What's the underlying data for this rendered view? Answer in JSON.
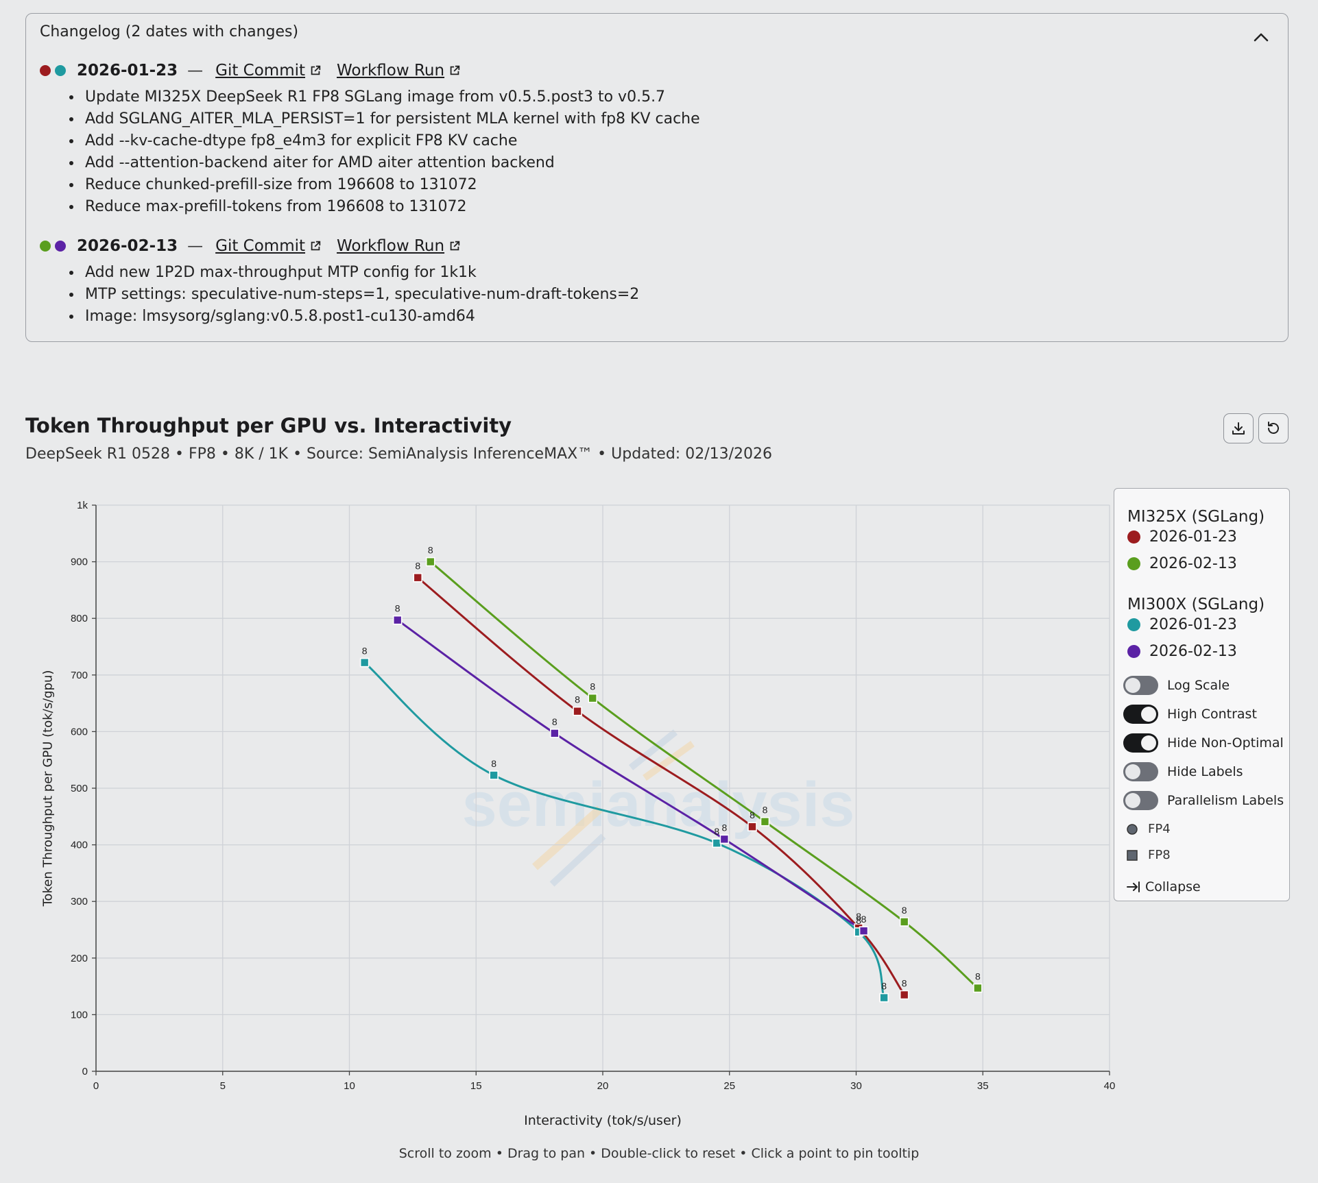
{
  "changelog": {
    "title": "Changelog (2 dates with changes)",
    "entries": [
      {
        "dot_colors": [
          "#9c1c1f",
          "#1f9aa0"
        ],
        "date": "2026-01-23",
        "dash": "—",
        "commit_label": "Git Commit",
        "workflow_label": "Workflow Run",
        "items": [
          "Update MI325X DeepSeek R1 FP8 SGLang image from v0.5.5.post3 to v0.5.7",
          "Add SGLANG_AITER_MLA_PERSIST=1 for persistent MLA kernel with fp8 KV cache",
          "Add --kv-cache-dtype fp8_e4m3 for explicit FP8 KV cache",
          "Add --attention-backend aiter for AMD aiter attention backend",
          "Reduce chunked-prefill-size from 196608 to 131072",
          "Reduce max-prefill-tokens from 196608 to 131072"
        ]
      },
      {
        "dot_colors": [
          "#5a9e1e",
          "#5b22a5"
        ],
        "date": "2026-02-13",
        "dash": "—",
        "commit_label": "Git Commit",
        "workflow_label": "Workflow Run",
        "items": [
          "Add new 1P2D max-throughput MTP config for 1k1k",
          "MTP settings: speculative-num-steps=1, speculative-num-draft-tokens=2",
          "Image: lmsysorg/sglang:v0.5.8.post1-cu130-amd64"
        ]
      }
    ]
  },
  "header": {
    "title": "Token Throughput per GPU vs. Interactivity",
    "subtitle": "DeepSeek R1 0528 • FP8 • 8K / 1K • Source: SemiAnalysis InferenceMAX™ • Updated: 02/13/2026"
  },
  "hint": "Scroll to zoom • Drag to pan • Double-click to reset • Click a point to pin tooltip",
  "watermark": "semianalysis",
  "legend": {
    "groups": [
      {
        "name": "MI325X (SGLang)",
        "items": [
          {
            "label": "2026-01-23",
            "color": "#9c1c1f"
          },
          {
            "label": "2026-02-13",
            "color": "#5a9e1e"
          }
        ]
      },
      {
        "name": "MI300X (SGLang)",
        "items": [
          {
            "label": "2026-01-23",
            "color": "#1f9aa0"
          },
          {
            "label": "2026-02-13",
            "color": "#5b22a5"
          }
        ]
      }
    ],
    "toggles": [
      {
        "label": "Log Scale",
        "on": false
      },
      {
        "label": "High Contrast",
        "on": true
      },
      {
        "label": "Hide Non-Optimal",
        "on": true
      },
      {
        "label": "Hide Labels",
        "on": false
      },
      {
        "label": "Parallelism Labels",
        "on": false
      }
    ],
    "shapes": [
      {
        "label": "FP4",
        "shape": "circle"
      },
      {
        "label": "FP8",
        "shape": "square"
      }
    ],
    "collapse_label": "Collapse"
  },
  "chart_data": {
    "type": "line",
    "xlabel": "Interactivity (tok/s/user)",
    "ylabel": "Token Throughput per GPU (tok/s/gpu)",
    "xlim": [
      0,
      40
    ],
    "ylim": [
      0,
      1000
    ],
    "x_ticks": [
      0,
      5,
      10,
      15,
      20,
      25,
      30,
      35,
      40
    ],
    "y_ticks": [
      0,
      100,
      200,
      300,
      400,
      500,
      600,
      700,
      800,
      900,
      1000
    ],
    "y_tick_labels": [
      "0",
      "100",
      "200",
      "300",
      "400",
      "500",
      "600",
      "700",
      "800",
      "900",
      "1k"
    ],
    "grid": true,
    "legend_position": "right",
    "marker": "square",
    "series": [
      {
        "color": "#9c1c1f",
        "points": [
          [
            12.7,
            872
          ],
          [
            19.0,
            636
          ],
          [
            25.9,
            432
          ],
          [
            30.1,
            253
          ],
          [
            31.9,
            135
          ]
        ],
        "labels": [
          "8",
          "8",
          "8",
          "8",
          "8"
        ]
      },
      {
        "color": "#5a9e1e",
        "points": [
          [
            13.2,
            900
          ],
          [
            19.6,
            659
          ],
          [
            26.4,
            441
          ],
          [
            31.9,
            264
          ],
          [
            34.8,
            147
          ]
        ],
        "labels": [
          "8",
          "8",
          "8",
          "8",
          "8"
        ]
      },
      {
        "color": "#1f9aa0",
        "points": [
          [
            10.6,
            722
          ],
          [
            15.7,
            523
          ],
          [
            24.5,
            403
          ],
          [
            30.1,
            246
          ],
          [
            31.1,
            130
          ]
        ],
        "labels": [
          "8",
          "8",
          "8",
          "8",
          "8"
        ]
      },
      {
        "color": "#5b22a5",
        "points": [
          [
            11.9,
            797
          ],
          [
            18.1,
            597
          ],
          [
            24.8,
            410
          ],
          [
            30.3,
            248
          ]
        ],
        "labels": [
          "8",
          "8",
          "8",
          "8"
        ]
      }
    ]
  }
}
